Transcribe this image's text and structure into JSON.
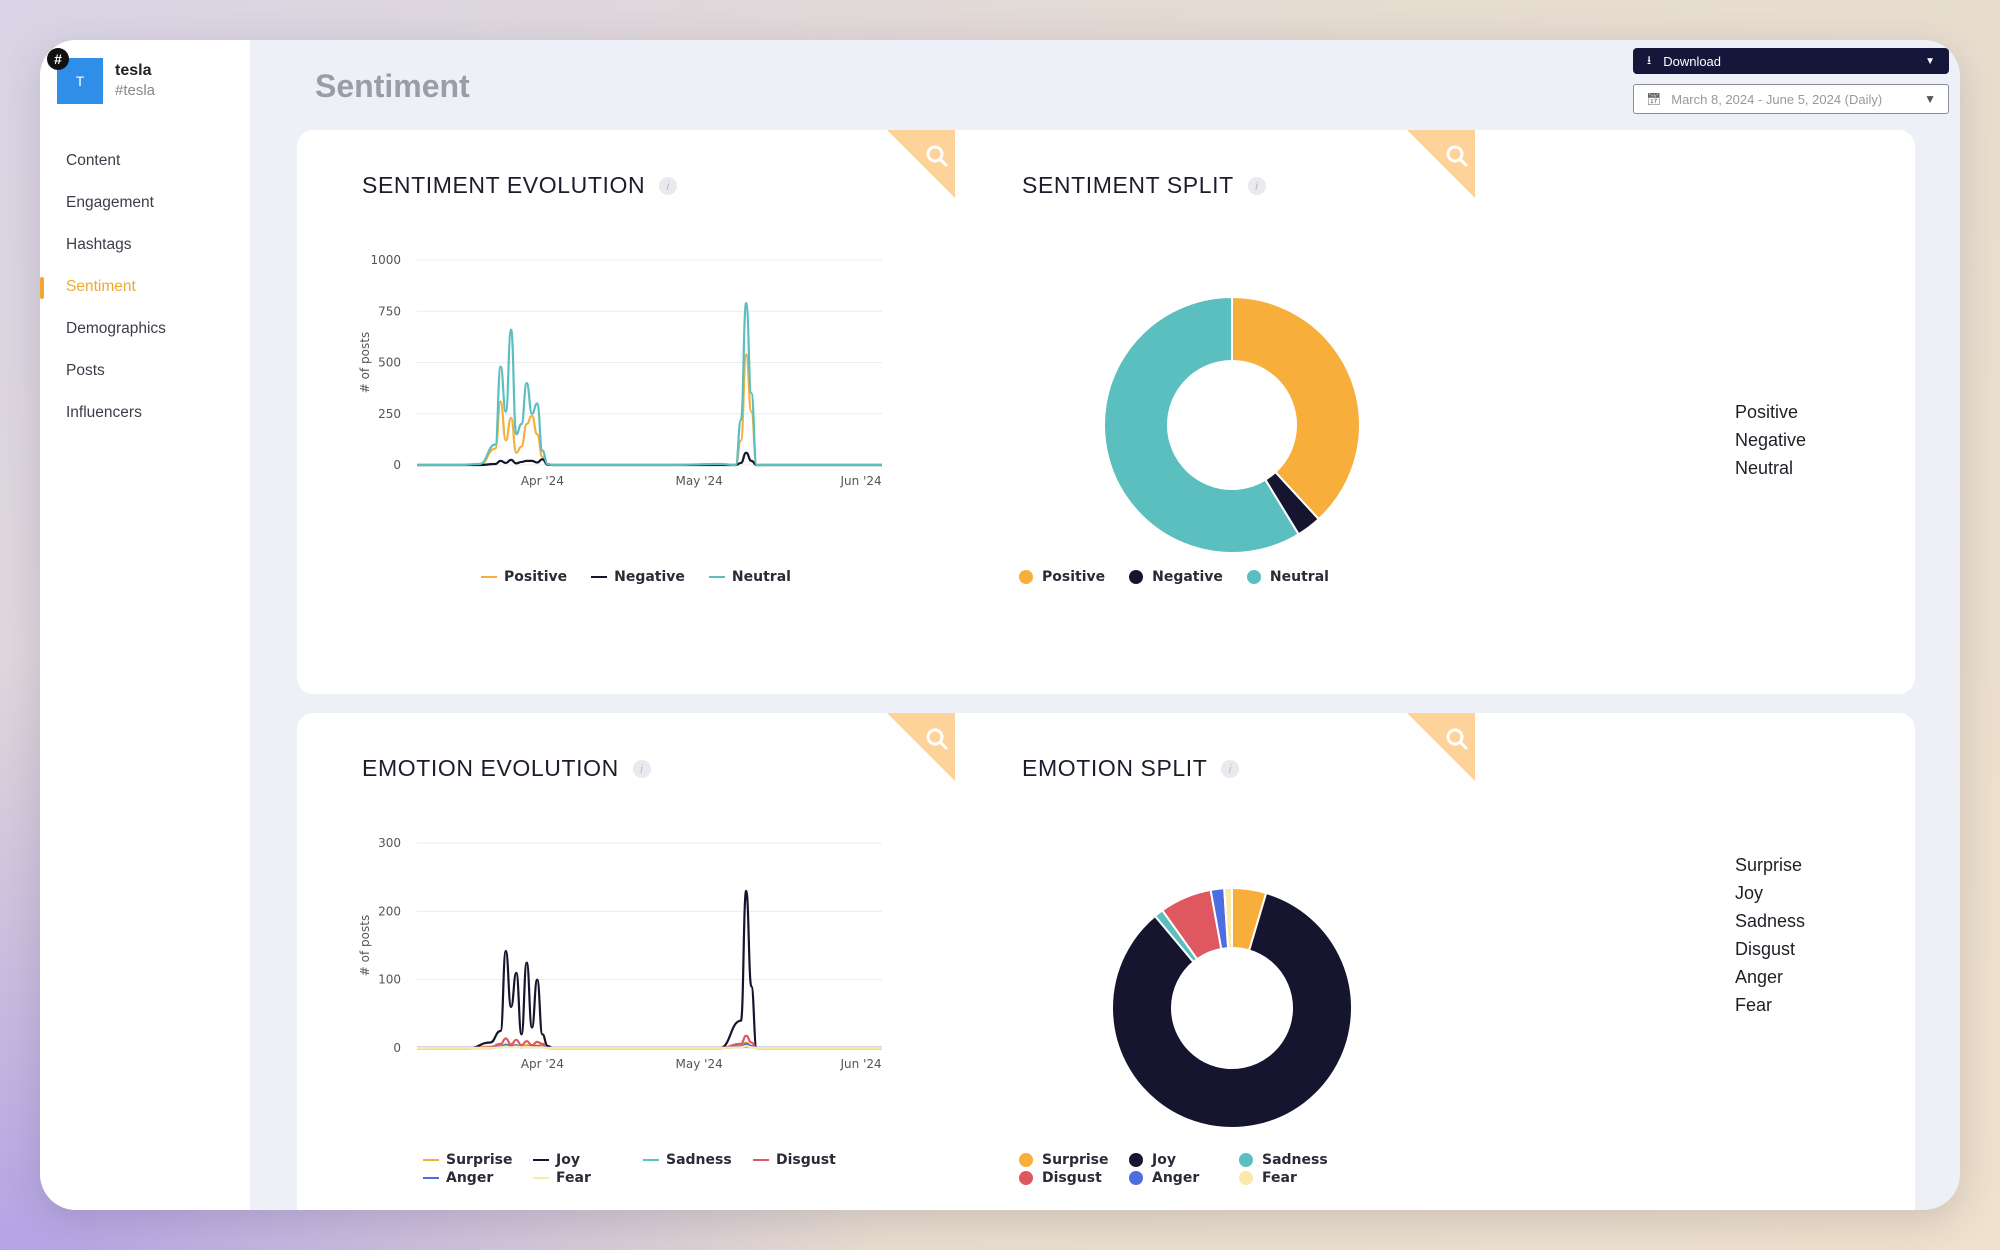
{
  "account": {
    "initial": "T",
    "badge": "#",
    "name": "tesla",
    "handle": "#tesla"
  },
  "nav": {
    "items": [
      {
        "label": "Content",
        "active": false
      },
      {
        "label": "Engagement",
        "active": false
      },
      {
        "label": "Hashtags",
        "active": false
      },
      {
        "label": "Sentiment",
        "active": true
      },
      {
        "label": "Demographics",
        "active": false
      },
      {
        "label": "Posts",
        "active": false
      },
      {
        "label": "Influencers",
        "active": false
      }
    ]
  },
  "page": {
    "title": "Sentiment"
  },
  "toolbar": {
    "download_label": "Download",
    "date_range": "March 8, 2024 - June 5, 2024 (Daily)"
  },
  "colors": {
    "positive": "#f7ae3a",
    "negative": "#16152f",
    "neutral": "#5bbfbf",
    "surprise": "#f7ae3a",
    "joy": "#16152f",
    "sadness": "#5bbfbf",
    "disgust": "#e0585f",
    "anger": "#4e6de0",
    "fear": "#fbe9a8",
    "corner_tab": "#fdd39a"
  },
  "sections": {
    "sentiment_evolution": {
      "title": "SENTIMENT EVOLUTION",
      "info_icon": "info-icon",
      "tab_icon": "search-icon"
    },
    "sentiment_split": {
      "title": "SENTIMENT SPLIT",
      "info_icon": "info-icon",
      "tab_icon": "search-icon"
    },
    "emotion_evolution": {
      "title": "EMOTION EVOLUTION",
      "info_icon": "info-icon",
      "tab_icon": "search-icon"
    },
    "emotion_split": {
      "title": "EMOTION SPLIT",
      "info_icon": "info-icon",
      "tab_icon": "search-icon"
    }
  },
  "chart_data": [
    {
      "id": "sentiment_evolution",
      "type": "line",
      "ylabel": "# of posts",
      "ylim": [
        0,
        1000
      ],
      "yticks": [
        0,
        250,
        500,
        750,
        1000
      ],
      "xlim": [
        "2024-03-08",
        "2024-06-05"
      ],
      "xticks": [
        {
          "date": "2024-04-01",
          "label": "Apr '24"
        },
        {
          "date": "2024-05-01",
          "label": "May '24"
        },
        {
          "date": "2024-06-01",
          "label": "Jun '24"
        }
      ],
      "x": [
        "2024-03-08",
        "2024-03-12",
        "2024-03-16",
        "2024-03-20",
        "2024-03-23",
        "2024-03-24",
        "2024-03-25",
        "2024-03-26",
        "2024-03-27",
        "2024-03-28",
        "2024-03-29",
        "2024-03-30",
        "2024-03-31",
        "2024-04-01",
        "2024-04-02",
        "2024-04-03",
        "2024-04-04",
        "2024-04-05",
        "2024-04-07",
        "2024-04-15",
        "2024-04-25",
        "2024-05-05",
        "2024-05-08",
        "2024-05-09",
        "2024-05-10",
        "2024-05-11",
        "2024-05-12",
        "2024-05-15",
        "2024-05-25",
        "2024-06-05"
      ],
      "series": [
        {
          "name": "Positive",
          "color_key": "positive",
          "values": [
            0,
            0,
            0,
            2,
            80,
            310,
            120,
            230,
            60,
            90,
            200,
            240,
            150,
            40,
            3,
            0,
            0,
            0,
            0,
            0,
            0,
            2,
            0,
            120,
            540,
            260,
            0,
            0,
            0,
            0
          ]
        },
        {
          "name": "Negative",
          "color_key": "negative",
          "values": [
            0,
            0,
            0,
            0,
            5,
            20,
            10,
            25,
            8,
            15,
            20,
            20,
            12,
            28,
            2,
            0,
            0,
            0,
            0,
            0,
            0,
            0,
            0,
            10,
            60,
            20,
            0,
            0,
            0,
            0
          ]
        },
        {
          "name": "Neutral",
          "color_key": "neutral",
          "values": [
            0,
            0,
            0,
            5,
            100,
            480,
            260,
            660,
            150,
            200,
            400,
            250,
            300,
            70,
            5,
            0,
            0,
            0,
            0,
            0,
            0,
            5,
            0,
            220,
            790,
            350,
            0,
            0,
            0,
            0
          ]
        }
      ]
    },
    {
      "id": "sentiment_split",
      "type": "pie",
      "donut": true,
      "slices": [
        {
          "label": "Positive",
          "value": 3345,
          "color_key": "positive"
        },
        {
          "label": "Negative",
          "value": 275,
          "color_key": "negative"
        },
        {
          "label": "Neutral",
          "value": 5147,
          "color_key": "neutral"
        }
      ],
      "legend": [
        "Positive",
        "Negative",
        "Neutral"
      ]
    },
    {
      "id": "emotion_evolution",
      "type": "line",
      "ylabel": "# of posts",
      "ylim": [
        0,
        300
      ],
      "yticks": [
        0,
        100,
        200,
        300
      ],
      "xlim": [
        "2024-03-08",
        "2024-06-05"
      ],
      "xticks": [
        {
          "date": "2024-04-01",
          "label": "Apr '24"
        },
        {
          "date": "2024-05-01",
          "label": "May '24"
        },
        {
          "date": "2024-06-01",
          "label": "Jun '24"
        }
      ],
      "x": [
        "2024-03-08",
        "2024-03-14",
        "2024-03-18",
        "2024-03-22",
        "2024-03-24",
        "2024-03-25",
        "2024-03-26",
        "2024-03-27",
        "2024-03-28",
        "2024-03-29",
        "2024-03-30",
        "2024-03-31",
        "2024-04-01",
        "2024-04-02",
        "2024-04-03",
        "2024-04-10",
        "2024-04-20",
        "2024-04-30",
        "2024-05-05",
        "2024-05-09",
        "2024-05-10",
        "2024-05-11",
        "2024-05-12",
        "2024-05-20",
        "2024-06-05"
      ],
      "series": [
        {
          "name": "Surprise",
          "color_key": "surprise",
          "values": [
            0,
            0,
            0,
            2,
            5,
            3,
            6,
            3,
            2,
            4,
            4,
            3,
            5,
            0,
            0,
            0,
            0,
            0,
            0,
            4,
            8,
            3,
            0,
            0,
            0
          ]
        },
        {
          "name": "Joy",
          "color_key": "joy",
          "values": [
            0,
            0,
            0,
            8,
            25,
            142,
            60,
            110,
            20,
            125,
            30,
            100,
            20,
            3,
            0,
            0,
            0,
            0,
            0,
            40,
            230,
            90,
            0,
            0,
            0
          ]
        },
        {
          "name": "Sadness",
          "color_key": "sadness",
          "values": [
            0,
            0,
            0,
            0,
            1,
            3,
            2,
            3,
            1,
            2,
            1,
            2,
            1,
            0,
            0,
            0,
            0,
            0,
            0,
            1,
            2,
            1,
            0,
            0,
            0
          ]
        },
        {
          "name": "Disgust",
          "color_key": "disgust",
          "values": [
            0,
            0,
            0,
            1,
            6,
            14,
            5,
            12,
            4,
            10,
            4,
            9,
            6,
            0,
            0,
            0,
            0,
            0,
            0,
            6,
            18,
            8,
            0,
            0,
            0
          ]
        },
        {
          "name": "Anger",
          "color_key": "anger",
          "values": [
            0,
            0,
            0,
            0,
            2,
            5,
            2,
            4,
            1,
            3,
            2,
            3,
            2,
            0,
            0,
            0,
            0,
            0,
            0,
            2,
            6,
            3,
            0,
            0,
            0
          ]
        },
        {
          "name": "Fear",
          "color_key": "fear",
          "values": [
            0,
            0,
            0,
            0,
            1,
            2,
            1,
            2,
            1,
            2,
            1,
            1,
            1,
            0,
            0,
            0,
            0,
            0,
            0,
            1,
            3,
            1,
            0,
            0,
            0
          ]
        }
      ]
    },
    {
      "id": "emotion_split",
      "type": "pie",
      "donut": true,
      "slices": [
        {
          "label": "Surprise",
          "value": 71,
          "color_key": "surprise"
        },
        {
          "label": "Joy",
          "value": 1300,
          "color_key": "joy"
        },
        {
          "label": "Sadness",
          "value": 19,
          "color_key": "sadness"
        },
        {
          "label": "Disgust",
          "value": 108,
          "color_key": "disgust"
        },
        {
          "label": "Anger",
          "value": 28,
          "color_key": "anger"
        },
        {
          "label": "Fear",
          "value": 16,
          "color_key": "fear"
        }
      ],
      "slice_order": [
        "Surprise",
        "Joy",
        "Sadness",
        "Disgust",
        "Anger",
        "Fear"
      ],
      "legend": [
        "Surprise",
        "Joy",
        "Sadness",
        "Disgust",
        "Anger",
        "Fear"
      ]
    }
  ]
}
